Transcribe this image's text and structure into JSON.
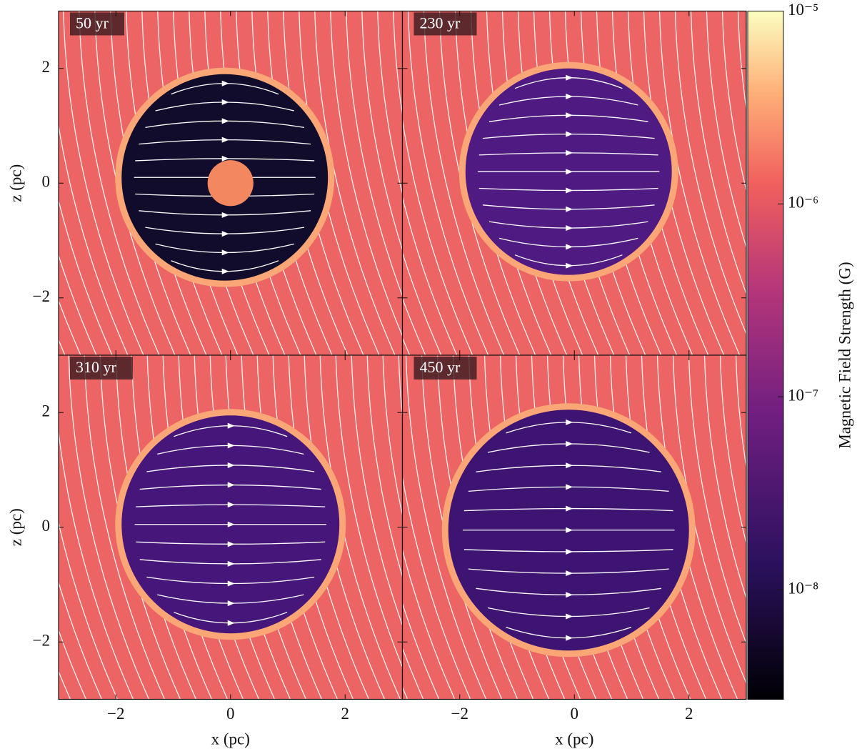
{
  "chart_data": {
    "type": "heatmap",
    "xlabel": "x  (pc)",
    "ylabel": "z  (pc)",
    "xlim": [
      -3,
      3
    ],
    "ylim": [
      -3,
      3
    ],
    "xticks": [
      {
        "value": -2,
        "label": "−2"
      },
      0,
      2
    ],
    "yticks": [
      {
        "value": -2,
        "label": "−2"
      },
      0,
      2
    ],
    "background": "#ec6464",
    "shell_color": "#fba676",
    "panels": [
      {
        "label": "50 yr",
        "inner_color": "#120c2c",
        "bubble": {
          "x": -0.1,
          "z": 0.1,
          "r": 1.8
        },
        "core": {
          "x": 0,
          "z": 0,
          "r": 0.4
        }
      },
      {
        "label": "230 yr",
        "inner_color": "#4f1a82",
        "bubble": {
          "x": -0.1,
          "z": 0.2,
          "r": 1.8
        }
      },
      {
        "label": "310 yr",
        "inner_color": "#46167a",
        "bubble": {
          "x": 0,
          "z": 0.05,
          "r": 1.9
        }
      },
      {
        "label": "450 yr",
        "inner_color": "#3e1472",
        "bubble": {
          "x": -0.1,
          "z": -0.05,
          "r": 2.1
        }
      }
    ],
    "colorbar": {
      "label": "Magnetic Field Strength  (G)",
      "log": true,
      "lim": [
        2.7e-09,
        1e-05
      ],
      "ticks": [
        {
          "value": 1e-05,
          "label": "10⁻⁵"
        },
        {
          "value": 1e-06,
          "label": "10⁻⁶"
        },
        {
          "value": 1e-07,
          "label": "10⁻⁷"
        },
        {
          "value": 1e-08,
          "label": "10⁻⁸"
        }
      ]
    }
  }
}
